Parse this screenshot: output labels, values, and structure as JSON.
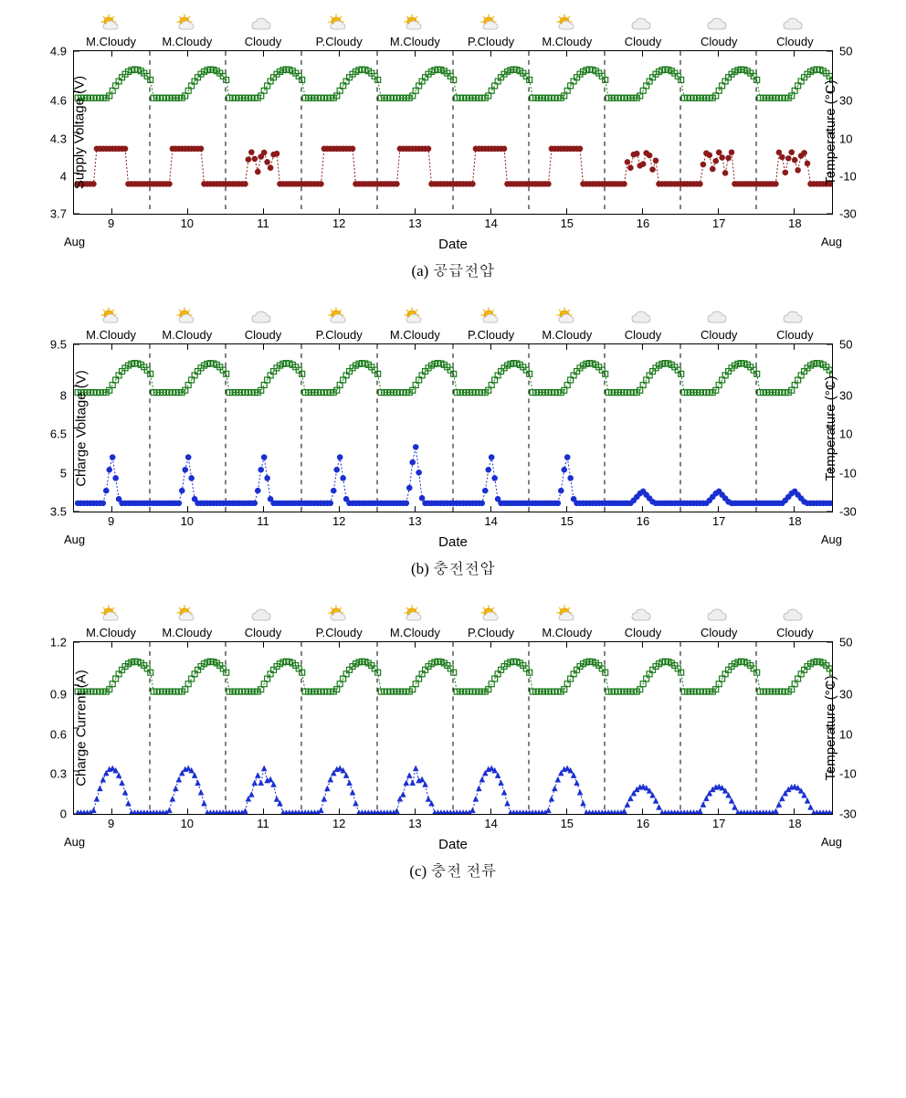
{
  "colors": {
    "temperature": "#1a7a1a",
    "supply": "#8b1a1a",
    "charge_v": "#1a2fd0",
    "charge_i": "#1a2fd0",
    "axis": "#000000",
    "grid": "#000000",
    "bg": "#ffffff"
  },
  "weather": {
    "icons": [
      "partly",
      "partly",
      "cloudy",
      "partly",
      "partly",
      "partly",
      "partly",
      "cloudy",
      "cloudy",
      "cloudy"
    ],
    "labels": [
      "M.Cloudy",
      "M.Cloudy",
      "Cloudy",
      "P.Cloudy",
      "M.Cloudy",
      "P.Cloudy",
      "M.Cloudy",
      "Cloudy",
      "Cloudy",
      "Cloudy"
    ]
  },
  "x": {
    "ticks": [
      9,
      10,
      11,
      12,
      13,
      14,
      15,
      16,
      17,
      18
    ],
    "month_left": "Aug",
    "month_right": "Aug",
    "label": "Date",
    "range": [
      8.5,
      18.5
    ],
    "grid": [
      9.5,
      10.5,
      11.5,
      12.5,
      13.5,
      14.5,
      15.5,
      16.5,
      17.5
    ]
  },
  "right_axis": {
    "label": "Temperature (°C)",
    "ticks": [
      50,
      30,
      10,
      -10,
      -30
    ],
    "range": [
      -30,
      50
    ]
  },
  "temperature_series": {
    "marker": "open-square",
    "baseline": 27,
    "amplitude": 14,
    "phase": 0.4,
    "noise": 0
  },
  "panels": [
    {
      "key": "supply",
      "caption": "(a) 공급전압",
      "height": 180,
      "left_axis": {
        "label": "Supply Voltage (V)",
        "ticks": [
          4.9,
          4.6,
          4.3,
          4.0,
          3.7
        ],
        "range": [
          3.7,
          4.9
        ]
      },
      "data_series": {
        "color_key": "supply",
        "marker": "filled-circle",
        "type": "step-pulse",
        "low": 3.92,
        "high": 4.18,
        "pulse_start": 0.25,
        "pulse_end": 0.65
      }
    },
    {
      "key": "charge_v",
      "caption": "(b) 충전전압",
      "height": 185,
      "left_axis": {
        "label": "Charge Voltage (V)",
        "ticks": [
          9.5,
          8.0,
          6.5,
          5.0,
          3.5
        ],
        "range": [
          3.5,
          9.5
        ]
      },
      "data_series": {
        "color_key": "charge_v",
        "marker": "filled-circle",
        "type": "spike",
        "low": 3.8,
        "high": 5.6,
        "spike_at": 0.45,
        "spike_width": 0.1,
        "day13_high": 6.0
      }
    },
    {
      "key": "charge_i",
      "caption": "(c) 충전 전류",
      "height": 190,
      "left_axis": {
        "label": "Charge Current (A)",
        "ticks": [
          1.2,
          0.9,
          0.6,
          0.3,
          0.0
        ],
        "range": [
          0.0,
          1.2
        ]
      },
      "data_series": {
        "color_key": "charge_i",
        "marker": "filled-triangle",
        "type": "hump",
        "low": 0.01,
        "high": 0.32,
        "hump_start": 0.2,
        "hump_end": 0.7
      }
    }
  ],
  "markers_per_day": 24,
  "marker_size": 3.0,
  "line_width": 1.0,
  "grid_dash": "5,5"
}
